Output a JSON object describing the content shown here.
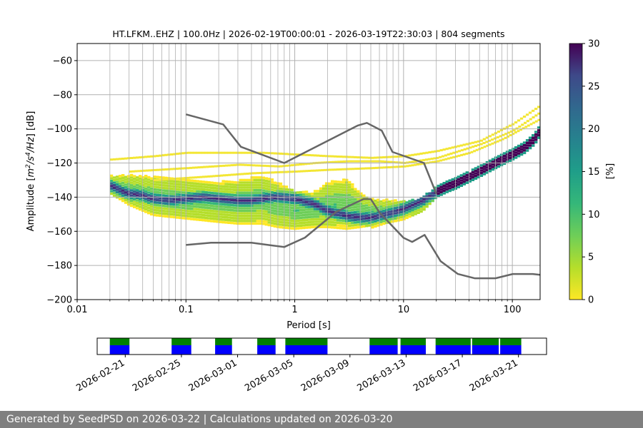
{
  "chart_data": {
    "type": "heatmap",
    "title": "HT.LFKM..EHZ | 100.0Hz | 2026-02-19T00:00:01 - 2026-03-19T22:30:03 | 804 segments",
    "xlabel": "Period [s]",
    "ylabel_parts": [
      "Amplitude [",
      "m",
      "2",
      "/s",
      "4",
      "/Hz",
      "] [dB]"
    ],
    "xscale": "log",
    "xlim": [
      0.01,
      180
    ],
    "ylim": [
      -200,
      -50
    ],
    "x_ticks": [
      0.01,
      0.1,
      1,
      10,
      100
    ],
    "x_tick_labels": [
      "0.01",
      "0.1",
      "1",
      "10",
      "100"
    ],
    "y_ticks": [
      -200,
      -180,
      -160,
      -140,
      -120,
      -100,
      -80,
      -60
    ],
    "y_tick_labels": [
      "−200",
      "−180",
      "−160",
      "−140",
      "−120",
      "−100",
      "−80",
      "−60"
    ],
    "grid": true,
    "colorbar": {
      "label": "[%]",
      "range": [
        0,
        30
      ],
      "ticks": [
        0,
        5,
        10,
        15,
        20,
        25,
        30
      ],
      "tick_labels": [
        "0",
        "5",
        "10",
        "15",
        "20",
        "25",
        "30"
      ],
      "colormap": "viridis_r"
    },
    "psd_mode": {
      "period": [
        0.02,
        0.025,
        0.03,
        0.04,
        0.05,
        0.07,
        0.1,
        0.15,
        0.2,
        0.3,
        0.4,
        0.5,
        0.7,
        1.0,
        1.5,
        2,
        3,
        4,
        5,
        6,
        7,
        8,
        10,
        12,
        15,
        18,
        20,
        25,
        30,
        40,
        50,
        70,
        100,
        130,
        160,
        180
      ],
      "db": [
        -133,
        -136,
        -138,
        -139,
        -141,
        -142,
        -141,
        -140,
        -141,
        -142,
        -142,
        -141,
        -140,
        -141,
        -144,
        -148,
        -151,
        -152,
        -152,
        -151,
        -150,
        -149,
        -147,
        -145,
        -142,
        -139,
        -137,
        -134,
        -132,
        -128,
        -125,
        -120,
        -115,
        -111,
        -106,
        -101
      ]
    },
    "spread_upper": {
      "period": [
        0.02,
        0.03,
        0.05,
        0.1,
        0.2,
        0.3,
        0.5,
        0.7,
        1,
        1.5,
        2,
        3,
        4,
        5,
        7,
        10,
        15,
        20
      ],
      "db": [
        -127,
        -126,
        -127,
        -129,
        -130,
        -129,
        -126,
        -130,
        -136,
        -136,
        -130,
        -128,
        -136,
        -140,
        -141,
        -142,
        -141,
        -138
      ]
    },
    "spread_lower": {
      "period": [
        0.02,
        0.03,
        0.05,
        0.1,
        0.2,
        0.3,
        0.5,
        0.7,
        1,
        1.5,
        2,
        3,
        4,
        5,
        7,
        10,
        15,
        20
      ],
      "db": [
        -139,
        -146,
        -152,
        -154,
        -156,
        -157,
        -157,
        -159,
        -160,
        -159,
        -159,
        -160,
        -159,
        -158,
        -155,
        -153,
        -148,
        -140
      ]
    },
    "sparse_lines": [
      {
        "period": [
          0.02,
          0.05,
          0.1,
          0.2,
          0.5,
          1,
          2,
          5,
          10,
          20,
          50,
          100,
          180
        ],
        "db": [
          -118,
          -116,
          -114,
          -114,
          -114,
          -115,
          -116,
          -117,
          -116,
          -113,
          -107,
          -97,
          -86
        ]
      },
      {
        "period": [
          0.03,
          0.1,
          0.3,
          0.7,
          1.5,
          3,
          6,
          10,
          20,
          50,
          100,
          180
        ],
        "db": [
          -125,
          -123,
          -121,
          -122,
          -120,
          -119,
          -119,
          -120,
          -117,
          -109,
          -101,
          -90
        ]
      },
      {
        "period": [
          0.05,
          0.15,
          0.4,
          1,
          2,
          5,
          10,
          20,
          40,
          80,
          180
        ],
        "db": [
          -130,
          -128,
          -126,
          -125,
          -124,
          -123,
          -122,
          -119,
          -114,
          -106,
          -94
        ]
      }
    ],
    "nhnm": {
      "period": [
        0.1,
        0.22,
        0.32,
        0.8,
        3.8,
        4.6,
        6.3,
        7.9,
        15.4,
        20
      ],
      "db": [
        -91.5,
        -97.4,
        -110.5,
        -120,
        -98,
        -96.5,
        -101,
        -113.5,
        -120,
        -138
      ]
    },
    "nlnm": {
      "period": [
        0.1,
        0.17,
        0.4,
        0.8,
        1.24,
        2.4,
        4.3,
        5,
        6,
        10,
        12,
        15.6,
        21.9,
        31.6,
        45,
        70,
        101,
        154,
        180
      ],
      "db": [
        -168,
        -166.7,
        -166.7,
        -169.2,
        -163.7,
        -148.6,
        -141.1,
        -141.1,
        -149,
        -163.8,
        -166.2,
        -162.1,
        -177.5,
        -185,
        -187.5,
        -187.5,
        -185,
        -185,
        -185.5
      ]
    },
    "availability": {
      "date_ticks": [
        "2026-02-21",
        "2026-02-25",
        "2026-03-01",
        "2026-03-05",
        "2026-03-09",
        "2026-03-13",
        "2026-03-17",
        "2026-03-21"
      ],
      "date_tick_day_offsets": [
        2,
        6,
        10,
        14,
        18,
        22,
        26,
        30
      ],
      "range_days": [
        0,
        32
      ],
      "data_segments": [
        [
          0.9,
          2.3
        ],
        [
          5.3,
          6.7
        ],
        [
          8.4,
          9.6
        ],
        [
          11.4,
          12.7
        ],
        [
          13.4,
          16.4
        ],
        [
          19.4,
          21.4
        ],
        [
          21.6,
          23.4
        ],
        [
          24.1,
          26.6
        ],
        [
          26.7,
          28.6
        ],
        [
          28.7,
          30.2
        ]
      ],
      "colors": {
        "data": "#008000",
        "psd": "#0000ff"
      }
    }
  },
  "footer": {
    "text": "Generated by SeedPSD on 2026-03-22 | Calculations updated on 2026-03-20"
  }
}
